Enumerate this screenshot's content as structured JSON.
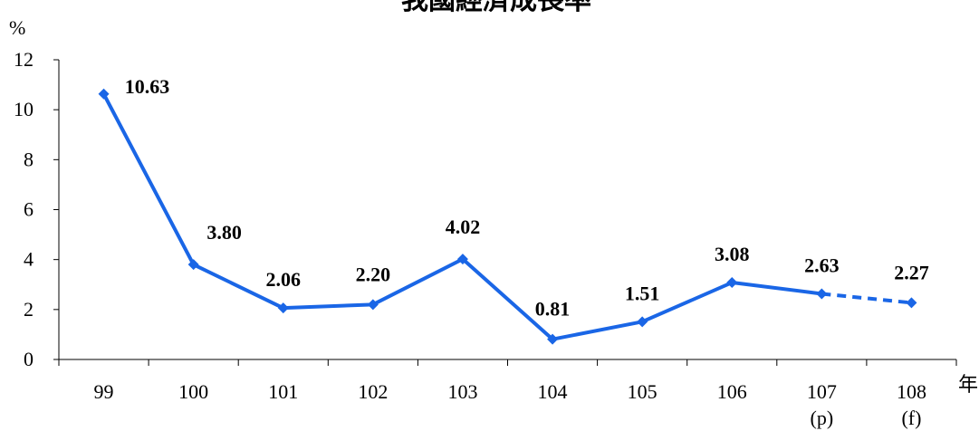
{
  "chart_data": {
    "type": "line",
    "title": "我國經濟成長率",
    "ylabel": "%",
    "xlabel": "年",
    "ylim": [
      0,
      12
    ],
    "yticks": [
      0,
      2,
      4,
      6,
      8,
      10,
      12
    ],
    "categories": [
      "99",
      "100",
      "101",
      "102",
      "103",
      "104",
      "105",
      "106",
      "107",
      "108"
    ],
    "category_notes": [
      "",
      "",
      "",
      "",
      "",
      "",
      "",
      "",
      "(p)",
      "(f)"
    ],
    "series": [
      {
        "values": [
          10.63,
          3.8,
          2.06,
          2.2,
          4.02,
          0.81,
          1.51,
          3.08,
          2.63,
          2.27
        ],
        "labels": [
          "10.63",
          "3.80",
          "2.06",
          "2.20",
          "4.02",
          "0.81",
          "1.51",
          "3.08",
          "2.63",
          "2.27"
        ],
        "color": "#1a66e6",
        "dashed_last_segment": true
      }
    ],
    "grid": false,
    "legend": "none"
  }
}
